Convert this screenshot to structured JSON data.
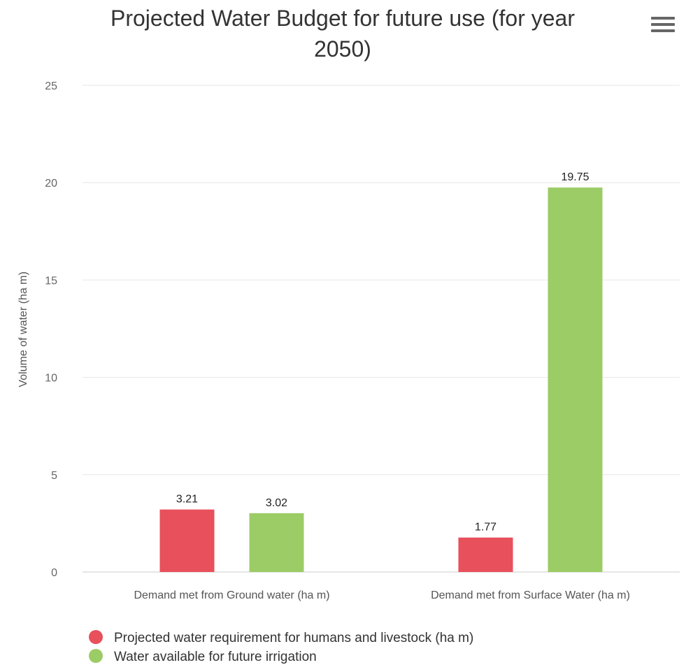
{
  "chart_data": {
    "type": "bar",
    "title_lines": [
      "Projected Water Budget for future use (for year",
      "2050)"
    ],
    "ylabel": "Volume of water (ha m)",
    "xlabel": "",
    "categories": [
      "Demand met from Ground water (ha m)",
      "Demand met from Surface Water (ha m)"
    ],
    "ylim": [
      0,
      25
    ],
    "yticks": [
      0,
      5,
      10,
      15,
      20,
      25
    ],
    "grid": true,
    "legend_position": "bottom-left",
    "series": [
      {
        "name": "Projected water requirement for humans and livestock (ha m)",
        "color": "#e8505b",
        "values": [
          3.21,
          1.77
        ]
      },
      {
        "name": "Water available for future irrigation",
        "color": "#9ccc65",
        "values": [
          3.02,
          19.75
        ]
      }
    ]
  },
  "menu_icon": "hamburger-menu-icon"
}
